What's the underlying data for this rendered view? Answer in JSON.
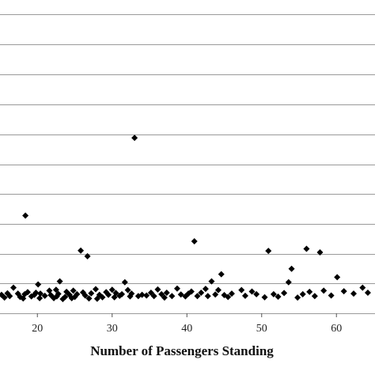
{
  "chart_data": {
    "type": "scatter",
    "title": "",
    "xlabel": "Number of Passengers Standing",
    "ylabel": "",
    "xlim": [
      15,
      65
    ],
    "x_ticks": [
      20,
      30,
      40,
      50,
      60
    ],
    "grid": "horizontal",
    "legend": "none",
    "marker": "diamond",
    "marker_color": "#000000",
    "gridline_color": "#9a9a9a",
    "series": [
      {
        "points": [
          [
            15.2,
            2.2
          ],
          [
            15.6,
            1.3
          ],
          [
            16.0,
            2.7
          ],
          [
            16.3,
            1.8
          ],
          [
            16.8,
            4.6
          ],
          [
            17.4,
            2.6
          ],
          [
            17.7,
            1.5
          ],
          [
            18.1,
            1.0
          ],
          [
            18.3,
            2.4
          ],
          [
            18.4,
            28.7
          ],
          [
            18.7,
            3.1
          ],
          [
            19.2,
            1.7
          ],
          [
            19.6,
            2.2
          ],
          [
            19.8,
            2.9
          ],
          [
            20.1,
            5.7
          ],
          [
            20.3,
            1.1
          ],
          [
            20.4,
            2.6
          ],
          [
            21.0,
            1.9
          ],
          [
            21.6,
            3.6
          ],
          [
            21.8,
            2.1
          ],
          [
            22.2,
            1.1
          ],
          [
            22.5,
            3.9
          ],
          [
            22.6,
            1.7
          ],
          [
            22.8,
            2.5
          ],
          [
            23.0,
            6.7
          ],
          [
            23.4,
            0.8
          ],
          [
            23.7,
            1.5
          ],
          [
            23.9,
            3.2
          ],
          [
            24.3,
            2.2
          ],
          [
            24.6,
            1.1
          ],
          [
            24.8,
            3.6
          ],
          [
            25.0,
            1.5
          ],
          [
            25.3,
            2.4
          ],
          [
            25.8,
            17.0
          ],
          [
            26.1,
            3.0
          ],
          [
            26.4,
            2.0
          ],
          [
            26.7,
            15.1
          ],
          [
            26.9,
            1.0
          ],
          [
            27.2,
            2.7
          ],
          [
            27.8,
            4.1
          ],
          [
            28.0,
            0.9
          ],
          [
            28.3,
            2.2
          ],
          [
            28.7,
            1.4
          ],
          [
            29.2,
            3.1
          ],
          [
            29.5,
            2.2
          ],
          [
            30.0,
            3.9
          ],
          [
            30.3,
            1.4
          ],
          [
            30.5,
            2.8
          ],
          [
            31.0,
            1.9
          ],
          [
            31.3,
            2.4
          ],
          [
            31.7,
            6.4
          ],
          [
            32.1,
            3.8
          ],
          [
            32.4,
            1.7
          ],
          [
            32.6,
            2.6
          ],
          [
            33.0,
            54.7
          ],
          [
            33.5,
            1.8
          ],
          [
            34.0,
            2.2
          ],
          [
            34.6,
            2.0
          ],
          [
            35.2,
            2.9
          ],
          [
            35.6,
            1.8
          ],
          [
            36.1,
            4.0
          ],
          [
            36.6,
            2.4
          ],
          [
            37.0,
            1.3
          ],
          [
            37.3,
            2.9
          ],
          [
            38.0,
            1.8
          ],
          [
            38.7,
            4.3
          ],
          [
            39.2,
            2.3
          ],
          [
            39.8,
            1.7
          ],
          [
            40.2,
            2.6
          ],
          [
            40.6,
            3.3
          ],
          [
            41.0,
            20.1
          ],
          [
            41.4,
            1.8
          ],
          [
            41.9,
            2.9
          ],
          [
            42.5,
            4.2
          ],
          [
            42.8,
            1.8
          ],
          [
            43.3,
            6.7
          ],
          [
            43.8,
            2.3
          ],
          [
            44.2,
            3.8
          ],
          [
            44.6,
            9.1
          ],
          [
            45.0,
            2.1
          ],
          [
            45.5,
            1.5
          ],
          [
            46.0,
            2.6
          ],
          [
            47.3,
            3.8
          ],
          [
            47.8,
            1.9
          ],
          [
            48.7,
            3.3
          ],
          [
            49.3,
            2.4
          ],
          [
            50.4,
            1.4
          ],
          [
            50.9,
            16.9
          ],
          [
            51.6,
            2.4
          ],
          [
            52.2,
            1.6
          ],
          [
            53.0,
            2.8
          ],
          [
            53.6,
            6.4
          ],
          [
            54.0,
            10.9
          ],
          [
            54.8,
            1.3
          ],
          [
            55.5,
            2.4
          ],
          [
            56.0,
            17.6
          ],
          [
            56.4,
            3.2
          ],
          [
            57.1,
            1.8
          ],
          [
            57.8,
            16.4
          ],
          [
            58.3,
            3.6
          ],
          [
            59.3,
            2.0
          ],
          [
            60.1,
            8.1
          ],
          [
            61.0,
            3.4
          ],
          [
            62.3,
            2.6
          ],
          [
            63.5,
            4.6
          ],
          [
            64.2,
            2.9
          ]
        ]
      }
    ]
  }
}
